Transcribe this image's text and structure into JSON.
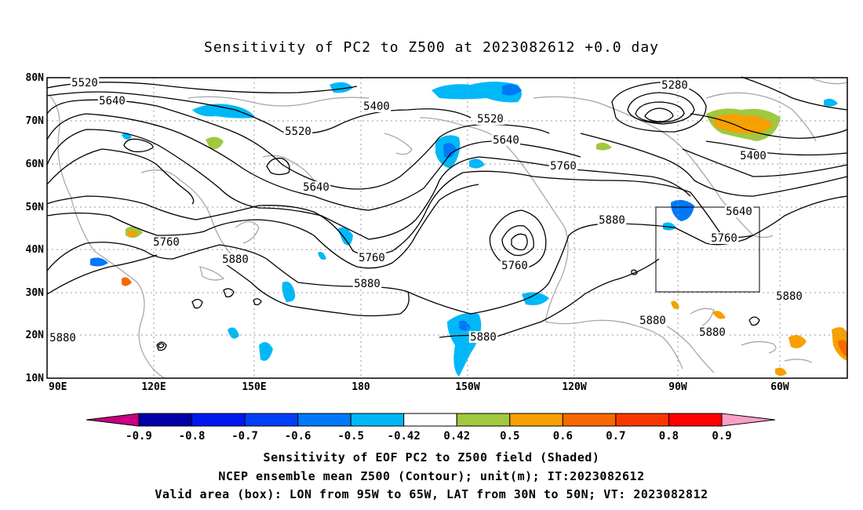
{
  "title": "Sensitivity of PC2 to Z500 at 2023082612 +0.0 day",
  "lat_labels": [
    "80N",
    "70N",
    "60N",
    "50N",
    "40N",
    "30N",
    "20N",
    "10N"
  ],
  "lon_labels": [
    "90E",
    "120E",
    "150E",
    "180",
    "150W",
    "120W",
    "90W",
    "60W"
  ],
  "contour_labels": [
    "5520",
    "5640",
    "5400",
    "5520",
    "5280",
    "5520",
    "5640",
    "5760",
    "5640",
    "5400",
    "5640",
    "5760",
    "5880",
    "5760",
    "5880",
    "5760",
    "5880",
    "5760",
    "5880",
    "5880",
    "5880",
    "5880",
    "5880"
  ],
  "colorbar": {
    "labels": [
      "-0.9",
      "-0.8",
      "-0.7",
      "-0.6",
      "-0.5",
      "-0.42",
      "0.42",
      "0.5",
      "0.6",
      "0.7",
      "0.8",
      "0.9"
    ],
    "colors": [
      "#0000a8",
      "#0018f0",
      "#0040f8",
      "#0078f8",
      "#00b8f8",
      "#ffffff",
      "#a0c840",
      "#f8a000",
      "#f86800",
      "#f83800",
      "#ff0000"
    ],
    "low_color": "#c80080",
    "high_color": "#f8a0c8"
  },
  "captions": [
    "Sensitivity of EOF PC2 to Z500 field (Shaded)",
    "NCEP ensemble mean Z500 (Contour); unit(m); IT:2023082612",
    "Valid area (box): LON from 95W to 65W, LAT from 30N to 50N; VT: 2023082812"
  ]
}
